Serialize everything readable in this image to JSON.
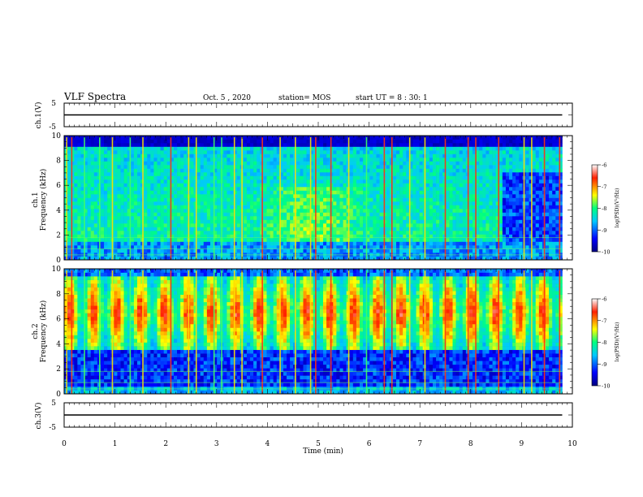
{
  "header": {
    "title": "VLF Spectra",
    "date": "Oct. 5 , 2020",
    "station": "station= MOS",
    "start": "start UT = 8 : 30: 1"
  },
  "chart_data": [
    {
      "type": "line",
      "name": "ch1-voltage",
      "ylabel": "ch.1(V)",
      "ylim": [
        -5,
        5
      ],
      "yticklabels": [
        "5",
        "-5"
      ],
      "x": [
        0,
        9.8
      ],
      "values": [
        0,
        0
      ],
      "xlim": [
        0,
        10
      ]
    },
    {
      "type": "heatmap",
      "name": "ch1-spectrogram",
      "ylabel": "ch.1\nFrequency (kHz)",
      "ylim": [
        0,
        10
      ],
      "yticklabels": [
        "0",
        "2",
        "4",
        "6",
        "8",
        "10"
      ],
      "xlim": [
        0,
        10
      ],
      "data_xmax": 9.8,
      "band": [
        1.5,
        9
      ],
      "quiet_after_min": 8.6,
      "colorbar": {
        "label": "log(PSD)(V²/Hz)",
        "range": [
          -10,
          -6
        ],
        "ticks": [
          "-6",
          "-7",
          "-8",
          "-9",
          "-10"
        ]
      },
      "spikes_min": [
        0.05,
        0.15,
        0.4,
        0.7,
        0.95,
        1.3,
        1.55,
        2.1,
        2.45,
        2.6,
        2.95,
        3.1,
        3.35,
        3.5,
        3.9,
        4.25,
        4.55,
        4.85,
        4.95,
        5.25,
        5.6,
        5.95,
        6.3,
        6.45,
        6.8,
        7.1,
        7.5,
        7.95,
        8.1,
        8.55,
        9.05,
        9.2,
        9.45,
        9.75
      ]
    },
    {
      "type": "heatmap",
      "name": "ch2-spectrogram",
      "ylabel": "ch.2\nFrequency (kHz)",
      "ylim": [
        0,
        10
      ],
      "yticklabels": [
        "0",
        "2",
        "4",
        "6",
        "8",
        "10"
      ],
      "xlim": [
        0,
        10
      ],
      "data_xmax": 9.8,
      "band": [
        3.5,
        9
      ],
      "peak_khz": 6.5,
      "colorbar": {
        "label": "log(PSD)(V²/Hz)",
        "range": [
          -10,
          -6
        ],
        "ticks": [
          "-6",
          "-7",
          "-8",
          "-9",
          "-10"
        ]
      },
      "spikes_min": [
        0.05,
        0.15,
        0.4,
        0.7,
        0.95,
        1.3,
        1.55,
        2.1,
        2.45,
        2.6,
        2.95,
        3.1,
        3.35,
        3.5,
        3.9,
        4.25,
        4.55,
        4.85,
        4.95,
        5.25,
        5.6,
        5.95,
        6.3,
        6.45,
        6.8,
        7.1,
        7.5,
        7.95,
        8.1,
        8.55,
        9.05,
        9.2,
        9.45,
        9.75
      ]
    },
    {
      "type": "line",
      "name": "ch3-voltage",
      "ylabel": "ch.3(V)",
      "ylim": [
        -5,
        5
      ],
      "yticklabels": [
        "5",
        "-5"
      ],
      "x": [
        0,
        9.8
      ],
      "values": [
        0,
        0
      ],
      "xlim": [
        0,
        10
      ],
      "xlabel": "Time (min)",
      "xticklabels": [
        "0",
        "1",
        "2",
        "3",
        "4",
        "5",
        "6",
        "7",
        "8",
        "9",
        "10"
      ]
    }
  ]
}
